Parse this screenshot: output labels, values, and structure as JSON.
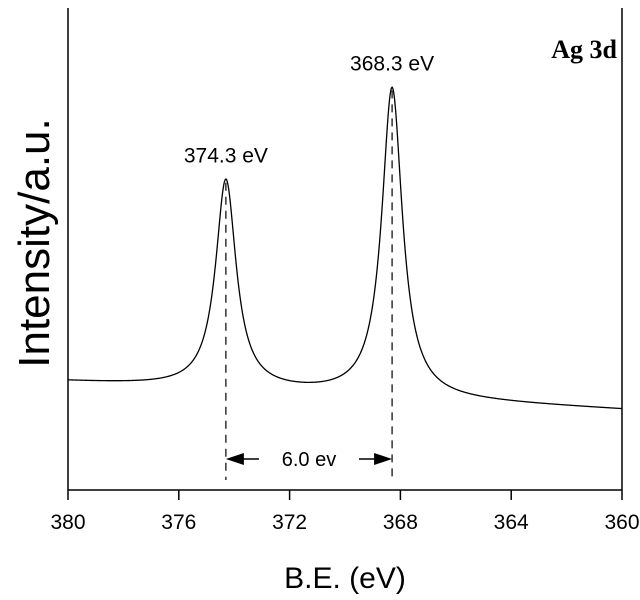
{
  "chart_data": {
    "type": "line",
    "xlabel": "B.E. (eV)",
    "ylabel": "Intensity/a.u.",
    "panel_label": "Ag 3d",
    "xlim": [
      380,
      360
    ],
    "x_reversed": true,
    "ylim": [
      0,
      1.2
    ],
    "y_ticks_shown": false,
    "grid": false,
    "x_ticks": [
      380,
      376,
      372,
      368,
      364,
      360
    ],
    "x_tick_labels": [
      "380",
      "376",
      "372",
      "368",
      "364",
      "360"
    ],
    "series": [
      {
        "peaks": [
          {
            "center": 374.3,
            "height": 0.77,
            "width": 0.45
          },
          {
            "center": 368.3,
            "height": 1.0,
            "width": 0.45
          }
        ],
        "baseline_start": 0.27,
        "baseline_end": 0.2
      }
    ],
    "annotations": [
      {
        "x": 374.3,
        "label": "374.3 eV"
      },
      {
        "x": 368.3,
        "label": "368.3 eV"
      }
    ],
    "separation": {
      "from": 374.3,
      "to": 368.3,
      "label": "6.0 ev"
    }
  }
}
